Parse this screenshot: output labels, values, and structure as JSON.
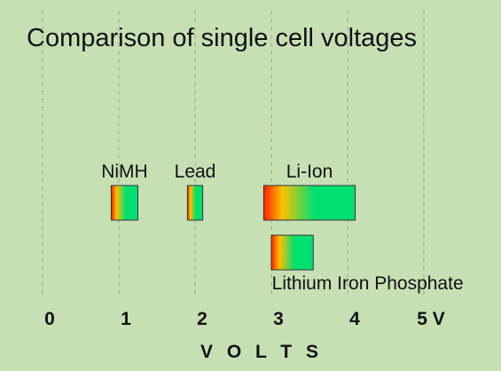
{
  "chart_data": {
    "type": "bar",
    "title": "Comparison of single cell voltages",
    "xlabel": "V O L T S",
    "ylabel": "",
    "xlim": [
      0,
      5.4
    ],
    "grid": true,
    "tick_labels": [
      "0",
      "1",
      "2",
      "3",
      "4",
      "5 V"
    ],
    "tick_values": [
      0,
      1,
      2,
      3,
      4,
      5
    ],
    "series": [
      {
        "name": "NiMH",
        "min": 0.9,
        "max": 1.25,
        "row": 1,
        "label_position": "above"
      },
      {
        "name": "Lead",
        "min": 1.9,
        "max": 2.1,
        "row": 1,
        "label_position": "above"
      },
      {
        "name": "Li-Ion",
        "min": 2.9,
        "max": 4.1,
        "row": 1,
        "label_position": "above"
      },
      {
        "name": "Lithium Iron Phosphate",
        "min": 3.0,
        "max": 3.55,
        "row": 2,
        "label_position": "below"
      }
    ],
    "colors": {
      "background": "#c6e0b4",
      "bar_low": "#ff2000",
      "bar_mid": "#ffc000",
      "bar_high": "#00e070",
      "bar_border": "#333333",
      "grid": "#9aaa90"
    }
  }
}
